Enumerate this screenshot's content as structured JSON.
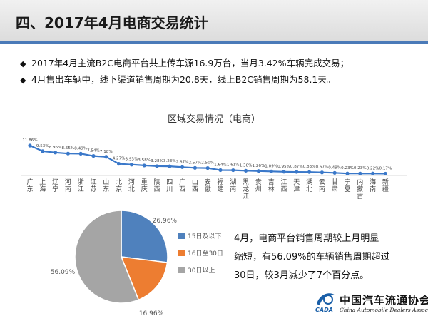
{
  "header": {
    "title": "四、2017年4月电商交易统计"
  },
  "bullets": [
    "2017年4月主流B2C电商平台共上传车源16.9万台，当月3.42%车辆完成交易；",
    "4月售出车辆中，线下渠道销售周期为20.8天，线上B2C销售周期为58.1天。"
  ],
  "bullet_marker": "◆",
  "note": [
    "4月，电商平台销售周期较上月明显",
    "缩短，有56.09%的车辆销售周期超过",
    "30日，较3月减少了7个百分点。"
  ],
  "logo": {
    "cn": "中国汽车流通协会",
    "en": "China Automobile Dealers Association",
    "abbr": "CADA"
  },
  "colors": {
    "accent": "#4a7ab8",
    "line": "#3a78c9",
    "pie_blue": "#4f81bd",
    "pie_orange": "#ed7d31",
    "pie_gray": "#a5a5a5"
  },
  "chart_data": [
    {
      "type": "line",
      "title": "区域交易情况（电商）",
      "categories": [
        "广东",
        "上海",
        "辽宁",
        "河南",
        "浙江",
        "江苏",
        "山东",
        "北京",
        "河北",
        "重庆",
        "陕西",
        "四川",
        "广西",
        "山西",
        "安徽",
        "福建",
        "湖南",
        "黑龙江",
        "贵州",
        "吉林",
        "江西",
        "天津",
        "湖北",
        "云南",
        "甘肃",
        "宁夏",
        "内蒙古",
        "海南",
        "新疆"
      ],
      "values": [
        11.86,
        9.53,
        8.96,
        8.55,
        8.49,
        7.54,
        7.18,
        4.27,
        3.93,
        3.58,
        3.28,
        3.23,
        2.87,
        2.57,
        2.5,
        1.64,
        1.61,
        1.38,
        1.26,
        1.09,
        0.95,
        0.87,
        0.83,
        0.67,
        0.49,
        0.23,
        0.23,
        0.22,
        0.17
      ],
      "labels": [
        "11.86%",
        "9.53%",
        "8.96%",
        "8.55%",
        "8.49%",
        "7.54%",
        "7.18%",
        "4.27%",
        "3.93%",
        "3.58%",
        "3.28%",
        "3.23%",
        "2.87%",
        "2.57%",
        "2.50%",
        "1.64%",
        "1.61%",
        "1.38%",
        "1.26%",
        "1.09%",
        "0.95%",
        "0.87%",
        "0.83%",
        "0.67%",
        "0.49%",
        "0.23%",
        "0.23%",
        "0.22%",
        "0.17%"
      ],
      "grid": false
    },
    {
      "type": "pie",
      "categories": [
        "15日及以下",
        "16日至30日",
        "30日以上"
      ],
      "values": [
        26.96,
        16.96,
        56.09
      ],
      "labels": [
        "26.96%",
        "16.96%",
        "56.09%"
      ],
      "legend": "right"
    }
  ]
}
